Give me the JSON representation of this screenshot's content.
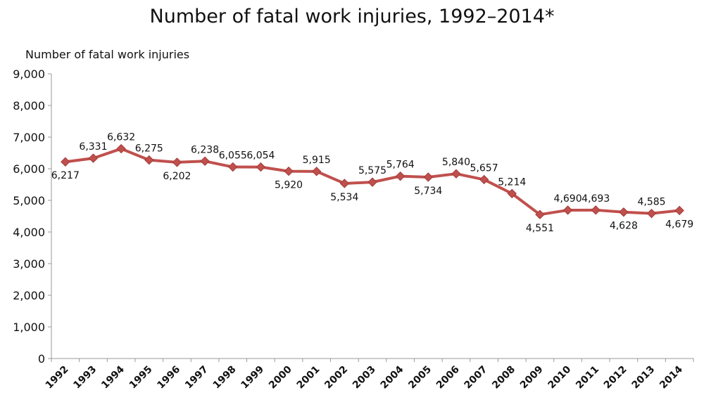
{
  "chart_data": {
    "type": "line",
    "title": "Number of fatal work injuries, 1992–2014*",
    "ylabel": "Number of fatal work injuries",
    "xlabel": "",
    "ylim": [
      0,
      9000
    ],
    "yticks": [
      0,
      1000,
      2000,
      3000,
      4000,
      5000,
      6000,
      7000,
      8000,
      9000
    ],
    "ytick_labels": [
      "0",
      "1,000",
      "2,000",
      "3,000",
      "4,000",
      "5,000",
      "6,000",
      "7,000",
      "8,000",
      "9,000"
    ],
    "categories": [
      "1992",
      "1993",
      "1994",
      "1995",
      "1996",
      "1997",
      "1998",
      "1999",
      "2000",
      "2001",
      "2002",
      "2003",
      "2004",
      "2005",
      "2006",
      "2007",
      "2008",
      "2009",
      "2010",
      "2011",
      "2012",
      "2013",
      "2014"
    ],
    "series": [
      {
        "values": [
          6217,
          6331,
          6632,
          6275,
          6202,
          6238,
          6055,
          6054,
          5920,
          5915,
          5534,
          5575,
          5764,
          5734,
          5840,
          5657,
          5214,
          4551,
          4690,
          4693,
          4628,
          4585,
          4679
        ],
        "labels": [
          "6,217",
          "6,331",
          "6,632",
          "6,275",
          "6,202",
          "6,238",
          "6,055",
          "6,054",
          "5,920",
          "5,915",
          "5,534",
          "5,575",
          "5,764",
          "5,734",
          "5,840",
          "5,657",
          "5,214",
          "4,551",
          "4,690",
          "4,693",
          "4,628",
          "4,585",
          "4,679"
        ],
        "label_positions": [
          "below",
          "above",
          "above",
          "above",
          "below",
          "above",
          "above",
          "above",
          "below",
          "above",
          "below",
          "above",
          "above",
          "below",
          "above",
          "above",
          "above",
          "below",
          "above",
          "above",
          "below",
          "above",
          "below"
        ]
      }
    ],
    "line_color": "#C0504D",
    "marker": "diamond",
    "grid": false,
    "legend": "none"
  }
}
